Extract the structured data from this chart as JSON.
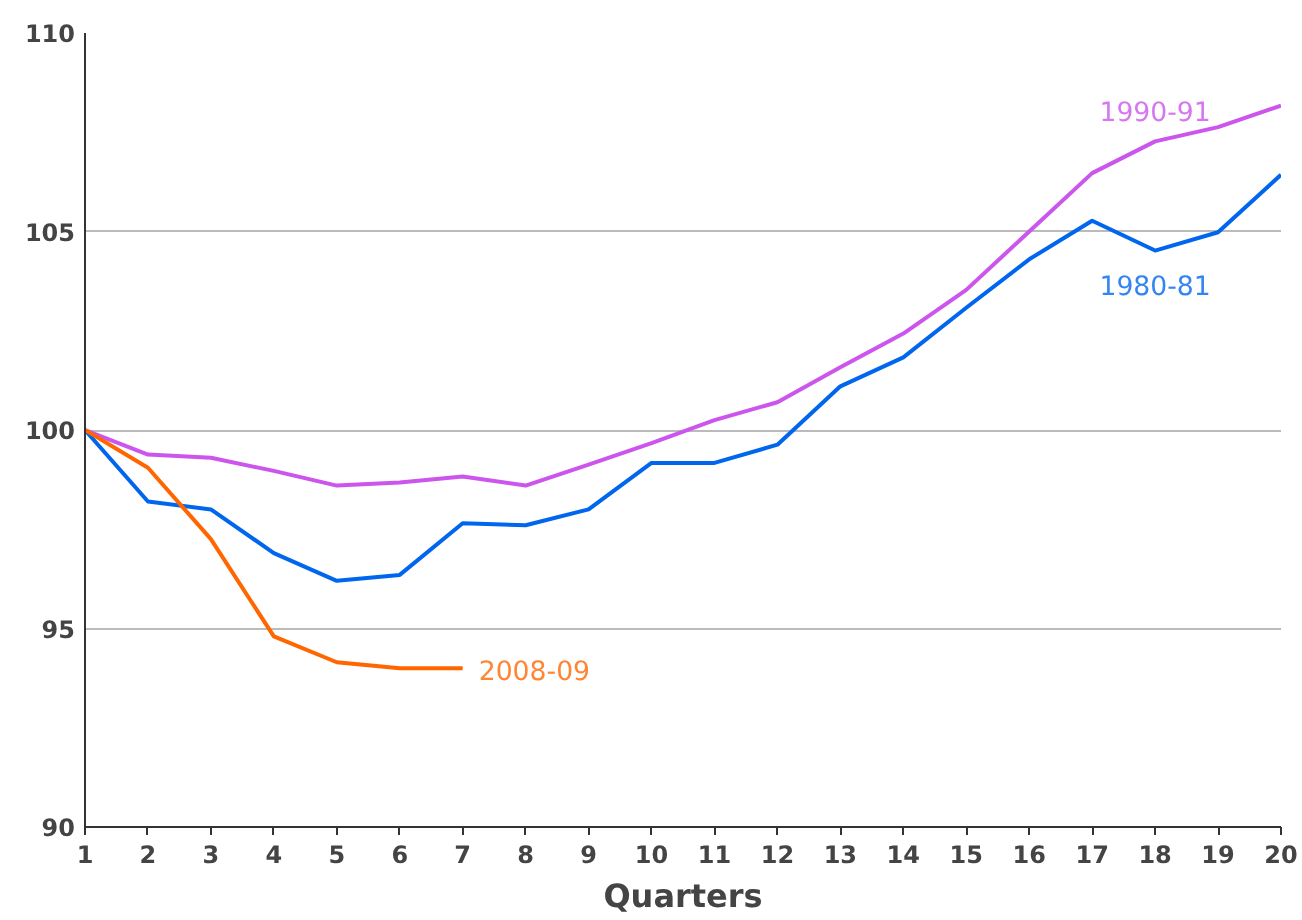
{
  "chart_data": {
    "type": "line",
    "xlabel": "Quarters",
    "x": [
      1,
      2,
      3,
      4,
      5,
      6,
      7,
      8,
      9,
      10,
      11,
      12,
      13,
      14,
      15,
      16,
      17,
      18,
      19,
      20
    ],
    "series": [
      {
        "name": "1990-91",
        "color": "#cc55ee",
        "values": [
          100,
          99.38,
          99.3,
          98.97,
          98.6,
          98.68,
          98.83,
          98.6,
          99.13,
          99.67,
          100.25,
          100.7,
          101.58,
          102.43,
          103.53,
          105.0,
          106.47,
          107.27,
          107.63,
          108.17
        ]
      },
      {
        "name": "1980-81",
        "color": "#0066ee",
        "values": [
          100,
          98.2,
          98.0,
          96.9,
          96.2,
          96.35,
          97.65,
          97.6,
          98.0,
          99.17,
          99.17,
          99.63,
          101.1,
          101.83,
          103.08,
          104.3,
          105.27,
          104.52,
          104.98,
          106.43
        ]
      },
      {
        "name": "2008-09",
        "color": "#ff6600",
        "values": [
          100,
          99.05,
          97.25,
          94.8,
          94.15,
          94.0,
          94.0,
          null,
          null,
          null,
          null,
          null,
          null,
          null,
          null,
          null,
          null,
          null,
          null,
          null
        ]
      }
    ],
    "xlim": [
      1,
      20
    ],
    "xticks": [
      1,
      2,
      3,
      4,
      5,
      6,
      7,
      8,
      9,
      10,
      11,
      12,
      13,
      14,
      15,
      16,
      17,
      18,
      19,
      20
    ],
    "ylim": [
      90,
      110
    ],
    "yticks": [
      90,
      95,
      100,
      105,
      110
    ],
    "grid": "y",
    "legend": false,
    "marker": "none",
    "line_style": "solid"
  }
}
